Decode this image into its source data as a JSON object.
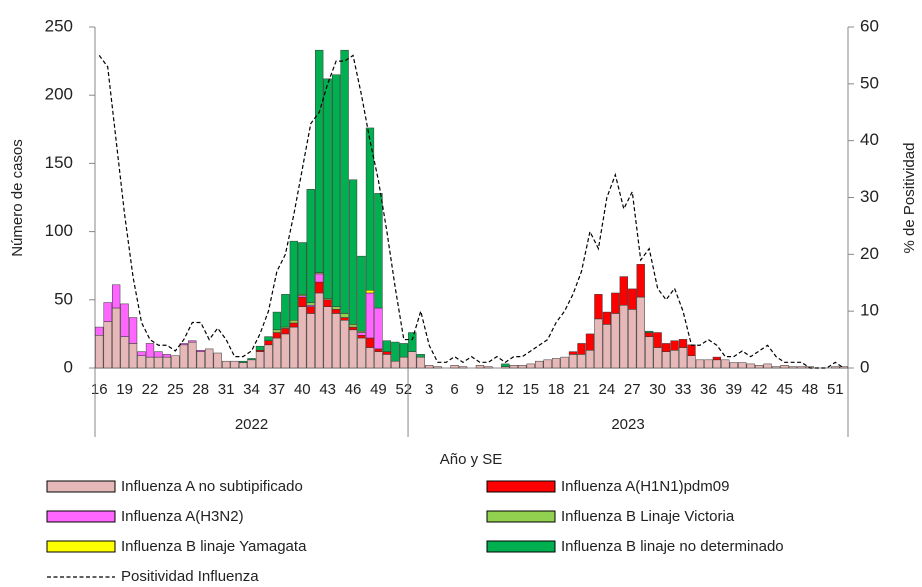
{
  "chart_data": {
    "type": "bar",
    "stacked": true,
    "y_label": "Número de casos",
    "y2_label": "% de Positividad",
    "x_label": "Año y SE",
    "ylim": [
      0,
      250
    ],
    "yticks": [
      0,
      50,
      100,
      150,
      200,
      250
    ],
    "y2lim": [
      0,
      60
    ],
    "y2ticks": [
      0,
      10,
      20,
      30,
      40,
      50,
      60
    ],
    "grid": false,
    "legend": "bottom",
    "categories": [
      "16",
      null,
      null,
      "19",
      null,
      null,
      "22",
      null,
      null,
      "25",
      null,
      null,
      "28",
      null,
      null,
      "31",
      null,
      null,
      "34",
      null,
      null,
      "37",
      null,
      null,
      "40",
      null,
      null,
      "43",
      null,
      null,
      "46",
      null,
      null,
      "49",
      null,
      null,
      "52",
      null,
      null,
      "3",
      null,
      null,
      "6",
      null,
      null,
      "9",
      null,
      null,
      "12",
      null,
      null,
      "15",
      null,
      null,
      "18",
      null,
      null,
      "21",
      null,
      null,
      "24",
      null,
      null,
      "27",
      null,
      null,
      "30",
      null,
      null,
      "33",
      null,
      null,
      "36",
      null,
      null,
      "39",
      null,
      null,
      "42",
      null,
      null,
      "45",
      null,
      null,
      "48",
      null,
      null,
      "51",
      null
    ],
    "x_groups": [
      {
        "label": "2022",
        "count": 37
      },
      {
        "label": "2023",
        "count": 52
      }
    ],
    "series": [
      {
        "name": "Influenza A no subtipificado",
        "color": "#e6b8b7",
        "values": [
          24,
          34,
          44,
          23,
          18,
          9,
          8,
          8,
          8,
          9,
          17,
          19,
          12,
          14,
          11,
          5,
          5,
          4,
          6,
          12,
          17,
          22,
          25,
          30,
          45,
          40,
          55,
          45,
          40,
          35,
          28,
          22,
          15,
          12,
          10,
          5,
          8,
          12,
          8,
          2,
          1,
          0,
          2,
          1,
          0,
          2,
          1,
          0,
          1,
          2,
          2,
          3,
          5,
          6,
          7,
          8,
          10,
          10,
          13,
          36,
          32,
          40,
          46,
          43,
          52,
          23,
          15,
          12,
          13,
          15,
          9,
          6,
          6,
          6,
          6,
          4,
          4,
          3,
          2,
          3,
          1,
          2,
          1,
          1,
          1,
          0,
          0,
          1,
          1
        ]
      },
      {
        "name": "Influenza A(H1N1)pdm09",
        "color": "#ff0000",
        "values": [
          0,
          0,
          0,
          0,
          0,
          0,
          0,
          0,
          0,
          0,
          0,
          0,
          0,
          0,
          0,
          0,
          0,
          0,
          0,
          1,
          3,
          4,
          4,
          3,
          7,
          5,
          8,
          5,
          3,
          2,
          2,
          2,
          7,
          2,
          2,
          0,
          0,
          0,
          0,
          0,
          0,
          0,
          0,
          0,
          0,
          0,
          0,
          0,
          0,
          0,
          0,
          0,
          0,
          0,
          0,
          0,
          2,
          8,
          12,
          18,
          9,
          15,
          21,
          15,
          24,
          3,
          11,
          6,
          7,
          6,
          8,
          0,
          0,
          2,
          0,
          0,
          0,
          0,
          0,
          0,
          0,
          0,
          0,
          0,
          0,
          0,
          0,
          0,
          0
        ]
      },
      {
        "name": "Influenza A(H3N2)",
        "color": "#ff66ff",
        "values": [
          6,
          14,
          17,
          24,
          19,
          3,
          10,
          4,
          2,
          0,
          1,
          1,
          1,
          0,
          0,
          0,
          0,
          0,
          0,
          0,
          0,
          0,
          0,
          0,
          1,
          1,
          6,
          0,
          0,
          0,
          0,
          2,
          33,
          30,
          0,
          0,
          0,
          0,
          0,
          0,
          0,
          0,
          0,
          0,
          0,
          0,
          0,
          0,
          0,
          0,
          0,
          0,
          0,
          0,
          0,
          0,
          0,
          0,
          0,
          0,
          0,
          0,
          0,
          0,
          0,
          0,
          0,
          0,
          0,
          0,
          0,
          0,
          0,
          0,
          0,
          0,
          0,
          0,
          0,
          0,
          0,
          0,
          0,
          0,
          0,
          0,
          0,
          0,
          0
        ]
      },
      {
        "name": "Influenza B Linaje Victoria",
        "color": "#92d050",
        "values": [
          0,
          0,
          0,
          0,
          0,
          0,
          0,
          0,
          0,
          0,
          0,
          0,
          0,
          0,
          0,
          0,
          0,
          0,
          0,
          0,
          0,
          2,
          1,
          2,
          1,
          2,
          1,
          1,
          2,
          3,
          2,
          1,
          0,
          0,
          0,
          0,
          0,
          0,
          0,
          0,
          0,
          0,
          0,
          0,
          0,
          0,
          0,
          0,
          0,
          0,
          0,
          0,
          0,
          0,
          0,
          0,
          0,
          0,
          0,
          0,
          0,
          0,
          0,
          0,
          0,
          0,
          0,
          0,
          0,
          0,
          0,
          0,
          0,
          0,
          0,
          0,
          0,
          0,
          0,
          0,
          0,
          0,
          0,
          0,
          0,
          0,
          0,
          0,
          0
        ]
      },
      {
        "name": "Influenza B linaje Yamagata",
        "color": "#ffff00",
        "values": [
          0,
          0,
          0,
          0,
          0,
          0,
          0,
          0,
          0,
          0,
          0,
          0,
          0,
          0,
          0,
          0,
          0,
          0,
          0,
          0,
          0,
          0,
          0,
          0,
          0,
          0,
          0,
          0,
          0,
          0,
          0,
          0,
          2,
          0,
          0,
          0,
          0,
          0,
          0,
          0,
          0,
          0,
          0,
          0,
          0,
          0,
          0,
          0,
          0,
          0,
          0,
          0,
          0,
          0,
          0,
          0,
          0,
          0,
          0,
          0,
          0,
          0,
          0,
          0,
          0,
          0,
          0,
          0,
          0,
          0,
          0,
          0,
          0,
          0,
          0,
          0,
          0,
          0,
          0,
          0,
          0,
          0,
          0,
          0,
          0,
          0,
          0,
          0,
          0
        ]
      },
      {
        "name": "Influenza B linaje no determinado",
        "color": "#00b050",
        "values": [
          0,
          0,
          0,
          0,
          0,
          0,
          0,
          0,
          0,
          0,
          0,
          0,
          0,
          0,
          0,
          0,
          0,
          1,
          1,
          3,
          3,
          13,
          24,
          58,
          38,
          83,
          163,
          161,
          170,
          193,
          106,
          55,
          119,
          84,
          8,
          14,
          10,
          14,
          2,
          0,
          0,
          0,
          0,
          0,
          0,
          0,
          0,
          0,
          2,
          0,
          0,
          0,
          0,
          0,
          0,
          0,
          0,
          0,
          0,
          0,
          0,
          0,
          0,
          0,
          0,
          1,
          0,
          0,
          0,
          0,
          0,
          0,
          0,
          0,
          0,
          0,
          0,
          0,
          0,
          0,
          0,
          0,
          0,
          0,
          0,
          0,
          0,
          0,
          0
        ]
      },
      {
        "name": "Positividad Influenza",
        "type": "line",
        "axis": "y2",
        "color": "#000000",
        "values": [
          55,
          53,
          40,
          27,
          16,
          8,
          5,
          4,
          4,
          3,
          5,
          8,
          8,
          5,
          7,
          5,
          2,
          2,
          3,
          6,
          10,
          17,
          20,
          27,
          35,
          43,
          45,
          50,
          54,
          54,
          55,
          48,
          40,
          33,
          24,
          14,
          5,
          5,
          10,
          4,
          1,
          1,
          2,
          1,
          2,
          1,
          1,
          2,
          1,
          2,
          2,
          3,
          4,
          5,
          8,
          10,
          13,
          17,
          24,
          21,
          30,
          34,
          28,
          31,
          19,
          21,
          14,
          12,
          14,
          10,
          4,
          4,
          5,
          4,
          2,
          2,
          3,
          2,
          3,
          4,
          2,
          1,
          1,
          1,
          0,
          0,
          0,
          1,
          0
        ]
      }
    ]
  }
}
